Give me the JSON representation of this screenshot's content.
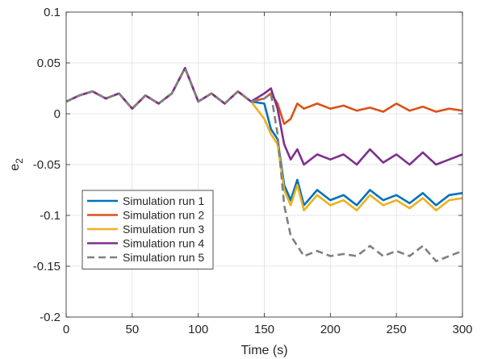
{
  "chart_data": {
    "type": "line",
    "title": "",
    "xlabel": "Time (s)",
    "ylabel": "e",
    "ylabel_subscript": "2",
    "xlim": [
      0,
      300
    ],
    "ylim": [
      -0.2,
      0.1
    ],
    "xticks": [
      0,
      50,
      100,
      150,
      200,
      250,
      300
    ],
    "yticks": [
      -0.2,
      -0.15,
      -0.1,
      -0.05,
      0,
      0.05,
      0.1
    ],
    "xtick_labels": [
      "0",
      "50",
      "100",
      "150",
      "200",
      "250",
      "300"
    ],
    "ytick_labels": [
      "-0.2",
      "-0.15",
      "-0.1",
      "-0.05",
      "0",
      "0.05",
      "0.1"
    ],
    "grid": true,
    "legend_position": "bottom-left",
    "x": [
      0,
      10,
      20,
      30,
      40,
      50,
      60,
      70,
      80,
      90,
      100,
      110,
      120,
      130,
      140,
      150,
      155,
      160,
      165,
      170,
      175,
      180,
      190,
      200,
      210,
      220,
      230,
      240,
      250,
      260,
      270,
      280,
      290,
      300
    ],
    "series": [
      {
        "name": "Simulation run 1",
        "color": "#0072BD",
        "dash": "solid",
        "values": [
          0.012,
          0.018,
          0.022,
          0.015,
          0.02,
          0.005,
          0.018,
          0.01,
          0.02,
          0.045,
          0.012,
          0.02,
          0.01,
          0.022,
          0.012,
          0.01,
          -0.015,
          -0.025,
          -0.07,
          -0.085,
          -0.065,
          -0.09,
          -0.075,
          -0.085,
          -0.08,
          -0.09,
          -0.075,
          -0.085,
          -0.08,
          -0.088,
          -0.078,
          -0.09,
          -0.08,
          -0.078
        ]
      },
      {
        "name": "Simulation run 2",
        "color": "#D95319",
        "dash": "solid",
        "values": [
          0.012,
          0.018,
          0.022,
          0.015,
          0.02,
          0.005,
          0.018,
          0.01,
          0.02,
          0.045,
          0.012,
          0.02,
          0.01,
          0.022,
          0.012,
          0.015,
          0.02,
          0.01,
          -0.01,
          -0.005,
          0.01,
          0.005,
          0.01,
          0.005,
          0.008,
          0.003,
          0.006,
          0.002,
          0.01,
          0.003,
          0.007,
          0.002,
          0.005,
          0.003
        ]
      },
      {
        "name": "Simulation run 3",
        "color": "#EDB120",
        "dash": "solid",
        "values": [
          0.012,
          0.018,
          0.022,
          0.015,
          0.02,
          0.005,
          0.018,
          0.01,
          0.02,
          0.045,
          0.012,
          0.02,
          0.01,
          0.022,
          0.012,
          -0.005,
          -0.02,
          -0.03,
          -0.075,
          -0.09,
          -0.07,
          -0.095,
          -0.08,
          -0.09,
          -0.085,
          -0.095,
          -0.08,
          -0.09,
          -0.085,
          -0.093,
          -0.083,
          -0.095,
          -0.085,
          -0.083
        ]
      },
      {
        "name": "Simulation run 4",
        "color": "#7E2F8E",
        "dash": "solid",
        "values": [
          0.012,
          0.018,
          0.022,
          0.015,
          0.02,
          0.005,
          0.018,
          0.01,
          0.02,
          0.045,
          0.012,
          0.02,
          0.01,
          0.022,
          0.012,
          0.02,
          0.025,
          0.005,
          -0.03,
          -0.045,
          -0.035,
          -0.05,
          -0.04,
          -0.045,
          -0.04,
          -0.05,
          -0.035,
          -0.048,
          -0.04,
          -0.05,
          -0.038,
          -0.05,
          -0.045,
          -0.04
        ]
      },
      {
        "name": "Simulation run 5",
        "color": "#808080",
        "dash": "dashed",
        "values": [
          0.012,
          0.018,
          0.022,
          0.015,
          0.02,
          0.005,
          0.018,
          0.01,
          0.02,
          0.045,
          0.012,
          0.02,
          0.01,
          0.022,
          0.012,
          0.015,
          0.02,
          -0.02,
          -0.09,
          -0.12,
          -0.13,
          -0.14,
          -0.135,
          -0.14,
          -0.138,
          -0.14,
          -0.13,
          -0.14,
          -0.135,
          -0.14,
          -0.13,
          -0.145,
          -0.14,
          -0.135
        ]
      }
    ]
  }
}
